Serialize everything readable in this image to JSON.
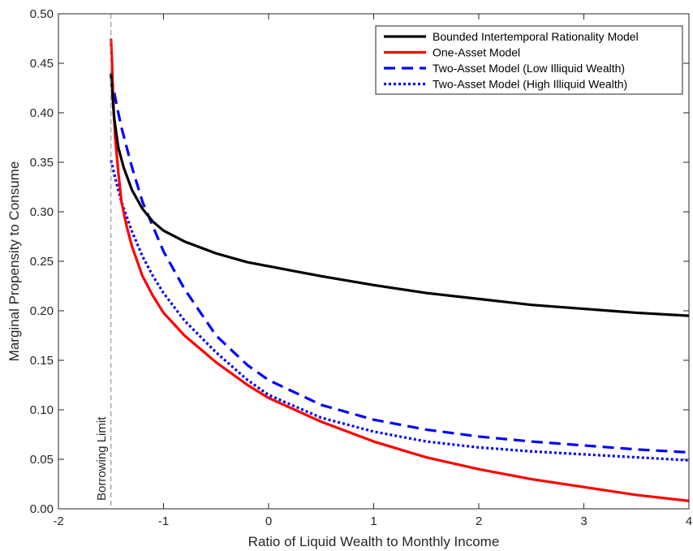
{
  "chart_data": {
    "type": "line",
    "xlabel": "Ratio of Liquid Wealth to Monthly Income",
    "ylabel": "Marginal Propensity to Consume",
    "xlim": [
      -2,
      4
    ],
    "ylim": [
      0,
      0.5
    ],
    "xticks": [
      -2,
      -1,
      0,
      1,
      2,
      3,
      4
    ],
    "yticks": [
      0,
      0.05,
      0.1,
      0.15,
      0.2,
      0.25,
      0.3,
      0.35,
      0.4,
      0.45,
      0.5
    ],
    "xtick_labels": [
      "-2",
      "-1",
      "0",
      "1",
      "2",
      "3",
      "4"
    ],
    "ytick_labels": [
      "0.00",
      "0.05",
      "0.10",
      "0.15",
      "0.20",
      "0.25",
      "0.30",
      "0.35",
      "0.40",
      "0.45",
      "0.50"
    ],
    "grid": false,
    "legend_position": "top-right",
    "annotation": {
      "text": "Borrowing Limit",
      "x": -1.5
    },
    "series": [
      {
        "name": "Bounded Intertemporal Rationality Model",
        "color": "#000000",
        "style": "solid",
        "x": [
          -1.5,
          -1.47,
          -1.43,
          -1.38,
          -1.3,
          -1.2,
          -1.1,
          -1.0,
          -0.8,
          -0.5,
          -0.2,
          0.0,
          0.5,
          1.0,
          1.5,
          2.0,
          2.5,
          3.0,
          3.5,
          4.0
        ],
        "y": [
          0.44,
          0.395,
          0.365,
          0.345,
          0.322,
          0.303,
          0.29,
          0.281,
          0.27,
          0.258,
          0.249,
          0.245,
          0.235,
          0.226,
          0.218,
          0.212,
          0.206,
          0.202,
          0.198,
          0.195
        ]
      },
      {
        "name": "One-Asset Model",
        "color": "#ff0000",
        "style": "solid",
        "x": [
          -1.5,
          -1.49,
          -1.48,
          -1.46,
          -1.43,
          -1.4,
          -1.35,
          -1.3,
          -1.2,
          -1.1,
          -1.0,
          -0.8,
          -0.5,
          -0.2,
          0.0,
          0.5,
          1.0,
          1.5,
          2.0,
          2.5,
          3.0,
          3.5,
          4.0
        ],
        "y": [
          0.475,
          0.45,
          0.415,
          0.375,
          0.34,
          0.31,
          0.285,
          0.265,
          0.235,
          0.215,
          0.198,
          0.175,
          0.148,
          0.125,
          0.112,
          0.088,
          0.068,
          0.052,
          0.04,
          0.03,
          0.022,
          0.014,
          0.008
        ]
      },
      {
        "name": "Two-Asset Model (Low Illiquid Wealth)",
        "color": "#0000ff",
        "style": "dashed",
        "x": [
          -1.5,
          -1.45,
          -1.4,
          -1.3,
          -1.2,
          -1.1,
          -1.0,
          -0.8,
          -0.5,
          -0.2,
          0.0,
          0.5,
          1.0,
          1.5,
          2.0,
          2.5,
          3.0,
          3.5,
          4.0
        ],
        "y": [
          0.438,
          0.41,
          0.385,
          0.345,
          0.31,
          0.285,
          0.26,
          0.222,
          0.175,
          0.145,
          0.13,
          0.105,
          0.09,
          0.08,
          0.073,
          0.068,
          0.064,
          0.06,
          0.057
        ]
      },
      {
        "name": "Two-Asset Model (High Illiquid Wealth)",
        "color": "#0000ff",
        "style": "dotted",
        "x": [
          -1.5,
          -1.45,
          -1.4,
          -1.3,
          -1.2,
          -1.1,
          -1.0,
          -0.8,
          -0.5,
          -0.2,
          0.0,
          0.5,
          1.0,
          1.5,
          2.0,
          2.5,
          3.0,
          3.5,
          4.0
        ],
        "y": [
          0.352,
          0.33,
          0.31,
          0.28,
          0.255,
          0.235,
          0.218,
          0.19,
          0.158,
          0.13,
          0.115,
          0.092,
          0.078,
          0.068,
          0.062,
          0.058,
          0.055,
          0.052,
          0.049
        ]
      }
    ]
  }
}
